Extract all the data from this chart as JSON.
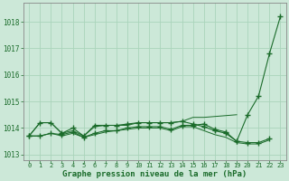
{
  "title": "Graphe pression niveau de la mer (hPa)",
  "background_color": "#cce8d8",
  "grid_color": "#aad4bb",
  "line_color": "#1a6b2a",
  "xlim": [
    -0.5,
    23.5
  ],
  "ylim": [
    1012.8,
    1018.7
  ],
  "yticks": [
    1013,
    1014,
    1015,
    1016,
    1017,
    1018
  ],
  "xticks": [
    0,
    1,
    2,
    3,
    4,
    5,
    6,
    7,
    8,
    9,
    10,
    11,
    12,
    13,
    14,
    15,
    16,
    17,
    18,
    19,
    20,
    21,
    22,
    23
  ],
  "series": {
    "line_lower": {
      "x": [
        0,
        1,
        2,
        3,
        4,
        5,
        6,
        7,
        8,
        9,
        10,
        11,
        12,
        13,
        14,
        15,
        16,
        17,
        18,
        19,
        20,
        21,
        22
      ],
      "y": [
        1013.7,
        1013.7,
        1013.8,
        1013.7,
        1013.8,
        1013.65,
        1013.75,
        1013.85,
        1013.9,
        1013.95,
        1014.0,
        1014.0,
        1014.0,
        1013.9,
        1014.05,
        1014.05,
        1013.9,
        1013.75,
        1013.65,
        1013.45,
        1013.4,
        1013.4,
        1013.55
      ]
    },
    "line_upper_flat": {
      "x": [
        0,
        1,
        2,
        3,
        4,
        5,
        6,
        7,
        8,
        9,
        10,
        11,
        12,
        13,
        14,
        15,
        16,
        19
      ],
      "y": [
        1013.7,
        1014.2,
        1014.2,
        1013.8,
        1013.9,
        1013.7,
        1014.05,
        1014.1,
        1014.1,
        1014.1,
        1014.2,
        1014.2,
        1014.2,
        1014.2,
        1014.25,
        1014.4,
        1014.4,
        1014.5
      ]
    },
    "line_main_marked": {
      "x": [
        0,
        1,
        2,
        3,
        4,
        5,
        6,
        7,
        8,
        9,
        10,
        11,
        12,
        13,
        14,
        15,
        16,
        17,
        18,
        19,
        20,
        21,
        22,
        23
      ],
      "y": [
        1013.7,
        1014.2,
        1014.2,
        1013.8,
        1014.0,
        1013.7,
        1014.1,
        1014.1,
        1014.1,
        1014.15,
        1014.2,
        1014.2,
        1014.2,
        1014.2,
        1014.25,
        1014.15,
        1014.05,
        1013.9,
        1013.8,
        1013.5,
        1014.5,
        1015.2,
        1016.8,
        1018.2
      ]
    },
    "line_second_marked": {
      "x": [
        0,
        1,
        2,
        3,
        4,
        5,
        6,
        7,
        8,
        9,
        10,
        11,
        12,
        13,
        14,
        15,
        16,
        17,
        18,
        19,
        20,
        21,
        22,
        23
      ],
      "y": [
        1013.7,
        1013.7,
        1013.8,
        1013.75,
        1013.85,
        1013.65,
        1013.8,
        1013.9,
        1013.9,
        1014.0,
        1014.05,
        1014.05,
        1014.05,
        1013.95,
        1014.1,
        1014.1,
        1014.15,
        1013.95,
        1013.85,
        1013.5,
        1013.45,
        1013.45,
        1013.6,
        null
      ]
    }
  }
}
